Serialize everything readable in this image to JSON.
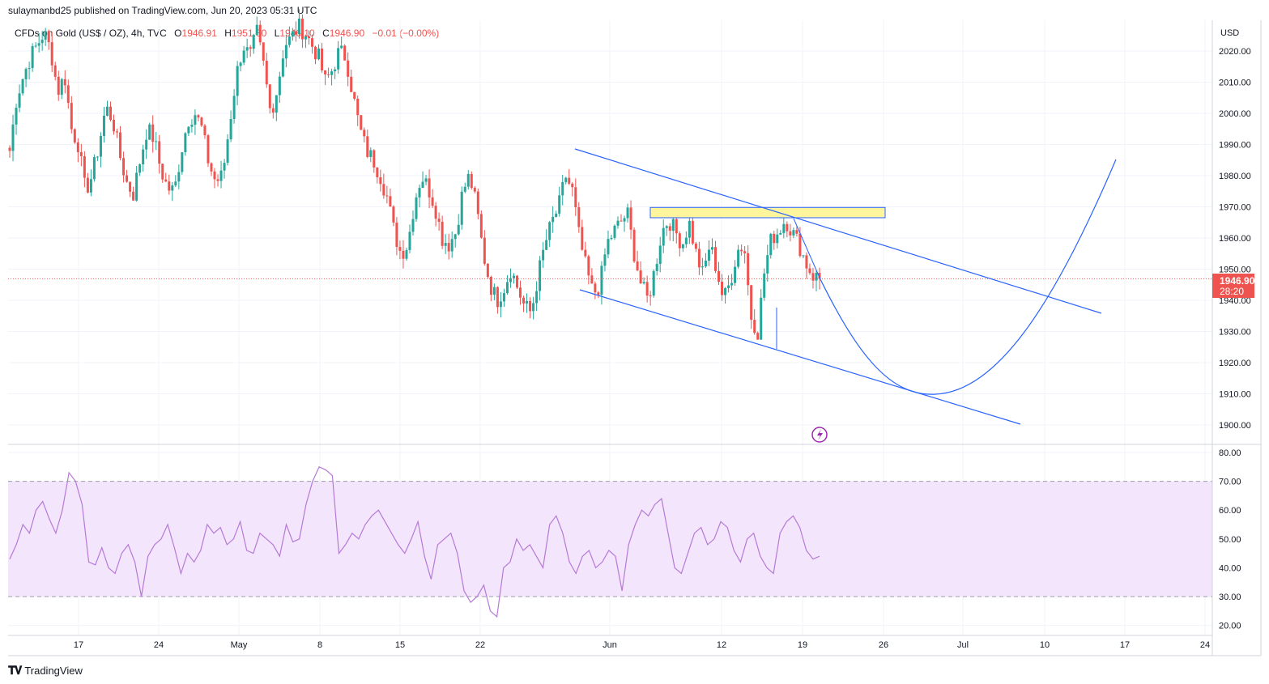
{
  "caption": "sulaymanbd25 published on TradingView.com, Jun 20, 2023 05:31 UTC",
  "legend": {
    "symbol": "CFDs on Gold (US$ / OZ), 4h, TVC",
    "o_label": "O",
    "o": "1946.91",
    "h_label": "H",
    "h": "1951.30",
    "l_label": "L",
    "l": "1946.10",
    "c_label": "C",
    "c": "1946.90",
    "change": "−0.01 (−0.00%)"
  },
  "currency": "USD",
  "last_price": {
    "value": "1946.90",
    "countdown": "28:20"
  },
  "footer_brand": "TradingView",
  "colors": {
    "up": "#26a69a",
    "down": "#ef5350",
    "trendline": "#2962ff",
    "zone_fill": "#fff59d",
    "rsi_line": "#b679d6",
    "rsi_band": "#f3e5fc",
    "price_line": "#ef5350"
  },
  "chart_data": [
    {
      "type": "candlestick",
      "title": "CFDs on Gold (US$ / OZ), 4h, TVC",
      "ylabel": "USD",
      "ylim": [
        1895,
        2030
      ],
      "y_ticks": [
        "2020.00",
        "2010.00",
        "2000.00",
        "1990.00",
        "1980.00",
        "1970.00",
        "1960.00",
        "1950.00",
        "1940.00",
        "1930.00",
        "1920.00",
        "1910.00",
        "1900.00"
      ],
      "x_ticks": [
        "17",
        "24",
        "May",
        "8",
        "15",
        "22",
        "Jun",
        "12",
        "19",
        "26",
        "Jul",
        "10",
        "17",
        "24"
      ],
      "close_path": [
        1988,
        2005,
        2012,
        2018,
        2022,
        2026,
        2020,
        2007,
        2012,
        1995,
        1990,
        1975,
        1980,
        1990,
        2002,
        1998,
        1987,
        1978,
        1974,
        1985,
        1995,
        1992,
        1982,
        1976,
        1975,
        1988,
        1998,
        2000,
        1995,
        1984,
        1978,
        1980,
        1996,
        2012,
        2022,
        2018,
        2026,
        2015,
        2000,
        2008,
        2022,
        2024,
        2028,
        2026,
        2022,
        2018,
        2010,
        2014,
        2020,
        2018,
        2006,
        1995,
        1988,
        1985,
        1980,
        1973,
        1962,
        1955,
        1958,
        1972,
        1980,
        1976,
        1970,
        1960,
        1958,
        1962,
        1975,
        1980,
        1970,
        1955,
        1945,
        1940,
        1944,
        1950,
        1944,
        1938,
        1936,
        1948,
        1958,
        1965,
        1970,
        1980,
        1975,
        1960,
        1950,
        1942,
        1945,
        1958,
        1962,
        1965,
        1968,
        1955,
        1945,
        1940,
        1950,
        1962,
        1966,
        1962,
        1958,
        1965,
        1955,
        1948,
        1958,
        1950,
        1940,
        1946,
        1956,
        1958,
        1935,
        1930,
        1950,
        1960,
        1962,
        1966,
        1962,
        1958,
        1952,
        1948,
        1946.9
      ],
      "zone": {
        "from": [
          1969.8
        ],
        "to": [
          1966.5
        ]
      },
      "trendlines": [
        {
          "name": "upper",
          "start": {
            "date": "May 28",
            "price": 1989
          },
          "end": {
            "date": "Jul 14",
            "price": 1937
          }
        },
        {
          "name": "lower",
          "start": {
            "date": "May 29",
            "price": 1945
          },
          "end": {
            "date": "Jul 7",
            "price": 1901
          }
        },
        {
          "name": "projection",
          "start": {
            "date": "Jun 20",
            "price": 1946.9
          },
          "min": {
            "date": "Jun 30",
            "price": 1910
          },
          "end": {
            "date": "Jul 15",
            "price": 1985
          }
        }
      ],
      "last_price": 1946.9
    },
    {
      "type": "line",
      "title": "",
      "ylim": [
        18,
        82
      ],
      "y_ticks": [
        "80.00",
        "70.00",
        "60.00",
        "50.00",
        "40.00",
        "30.00",
        "20.00"
      ],
      "band": [
        30,
        70
      ],
      "values": [
        43,
        48,
        55,
        52,
        60,
        63,
        57,
        52,
        60,
        73,
        70,
        62,
        42,
        41,
        47,
        40,
        38,
        45,
        48,
        42,
        30,
        44,
        48,
        50,
        55,
        47,
        38,
        45,
        42,
        46,
        55,
        52,
        54,
        48,
        50,
        56,
        46,
        45,
        52,
        50,
        48,
        44,
        55,
        49,
        50,
        62,
        70,
        75,
        74,
        72,
        45,
        48,
        52,
        50,
        55,
        58,
        60,
        56,
        52,
        48,
        45,
        50,
        56,
        44,
        36,
        48,
        50,
        52,
        45,
        32,
        28,
        30,
        34,
        25,
        23,
        40,
        42,
        50,
        46,
        48,
        44,
        40,
        55,
        58,
        52,
        42,
        38,
        44,
        46,
        40,
        42,
        46,
        44,
        32,
        48,
        55,
        60,
        58,
        62,
        64,
        52,
        40,
        38,
        45,
        52,
        54,
        48,
        50,
        56,
        54,
        46,
        42,
        50,
        52,
        44,
        40,
        38,
        52,
        56,
        58,
        54,
        46,
        43,
        44
      ]
    }
  ]
}
